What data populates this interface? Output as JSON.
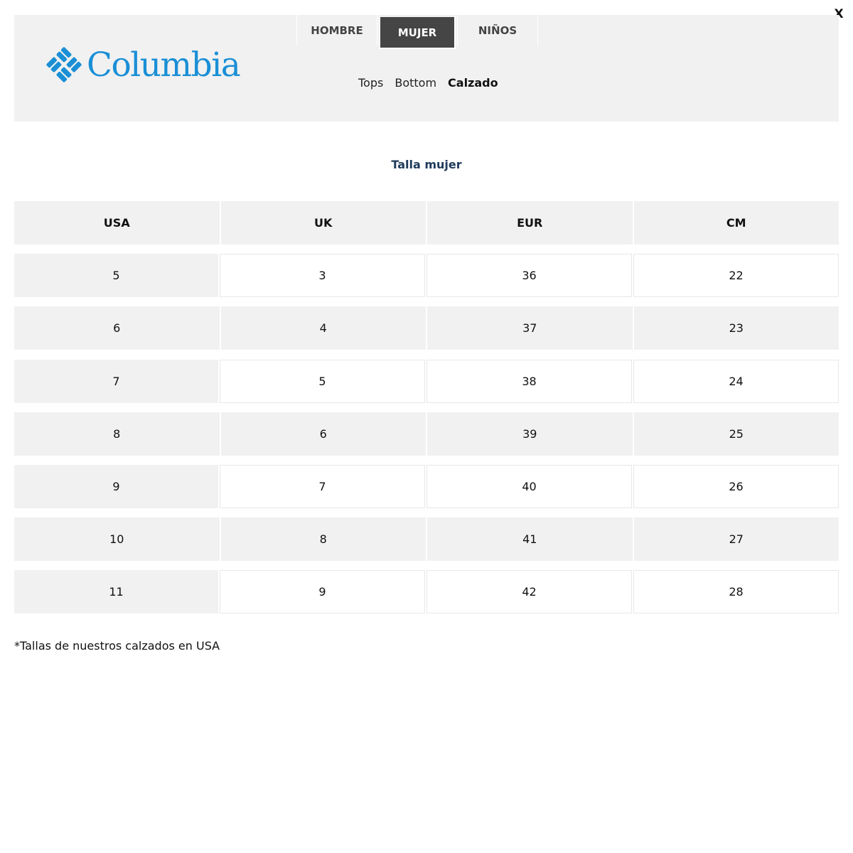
{
  "close_label": "X",
  "brand": {
    "name": "Columbia",
    "color": "#1a8fd6"
  },
  "tabs": [
    {
      "label": "HOMBRE",
      "active": false
    },
    {
      "label": "MUJER",
      "active": true
    },
    {
      "label": "NIÑOS",
      "active": false
    }
  ],
  "subnav": [
    {
      "label": "Tops",
      "active": false
    },
    {
      "label": "Bottom",
      "active": false
    },
    {
      "label": "Calzado",
      "active": true
    }
  ],
  "title": "Talla mujer",
  "table": {
    "headers": [
      "USA",
      "UK",
      "EUR",
      "CM"
    ],
    "rows": [
      [
        "5",
        "3",
        "36",
        "22"
      ],
      [
        "6",
        "4",
        "37",
        "23"
      ],
      [
        "7",
        "5",
        "38",
        "24"
      ],
      [
        "8",
        "6",
        "39",
        "25"
      ],
      [
        "9",
        "7",
        "40",
        "26"
      ],
      [
        "10",
        "8",
        "41",
        "27"
      ],
      [
        "11",
        "9",
        "42",
        "28"
      ]
    ]
  },
  "note": "*Tallas de nuestros calzados en USA"
}
